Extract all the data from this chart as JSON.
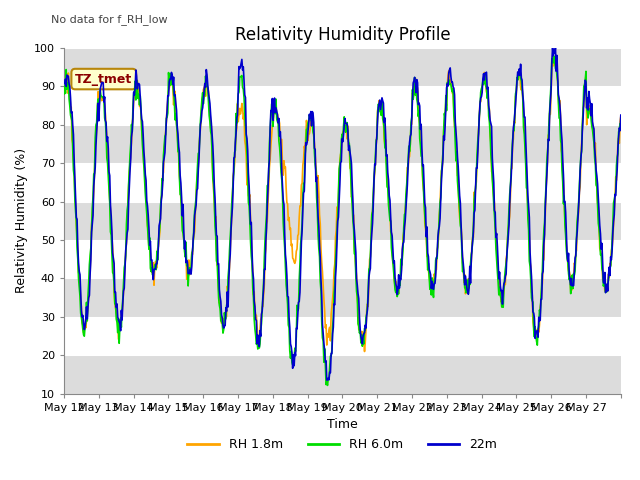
{
  "title": "Relativity Humidity Profile",
  "no_data_text": "No data for f_RH_low",
  "tz_label": "TZ_tmet",
  "xlabel": "Time",
  "ylabel": "Relativity Humidity (%)",
  "ylim": [
    10,
    100
  ],
  "yticks": [
    10,
    20,
    30,
    40,
    50,
    60,
    70,
    80,
    90,
    100
  ],
  "x_labels": [
    "May 12",
    "May 13",
    "May 14",
    "May 15",
    "May 16",
    "May 17",
    "May 18",
    "May 19",
    "May 20",
    "May 21",
    "May 22",
    "May 23",
    "May 24",
    "May 25",
    "May 26",
    "May 27"
  ],
  "color_orange": "#FFA500",
  "color_green": "#00DD00",
  "color_blue": "#0000CC",
  "legend_labels": [
    "RH 1.8m",
    "RH 6.0m",
    "22m"
  ],
  "bg_band_color": "#DCDCDC",
  "bg_white": "#FFFFFF",
  "title_fontsize": 12,
  "label_fontsize": 9,
  "tick_fontsize": 8
}
